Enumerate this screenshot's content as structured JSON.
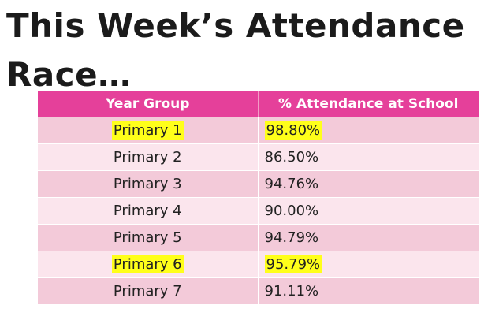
{
  "title": {
    "line1": "This Week’s Attendance",
    "line2": "Race…"
  },
  "table": {
    "headers": [
      "Year Group",
      "% Attendance at School"
    ],
    "rows": [
      {
        "year": "Primary 1",
        "attendance": "98.80%",
        "highlighted": true
      },
      {
        "year": "Primary 2",
        "attendance": "86.50%",
        "highlighted": false
      },
      {
        "year": "Primary 3",
        "attendance": "94.76%",
        "highlighted": false
      },
      {
        "year": "Primary 4",
        "attendance": "90.00%",
        "highlighted": false
      },
      {
        "year": "Primary 5",
        "attendance": "94.79%",
        "highlighted": false
      },
      {
        "year": "Primary 6",
        "attendance": "95.79%",
        "highlighted": true
      },
      {
        "year": "Primary 7",
        "attendance": "91.11%",
        "highlighted": false
      }
    ]
  },
  "colors": {
    "header_bg": "#e5409a",
    "row_dark": "#f3cad9",
    "row_light": "#fbe5ed",
    "highlight": "#ffff1a"
  }
}
